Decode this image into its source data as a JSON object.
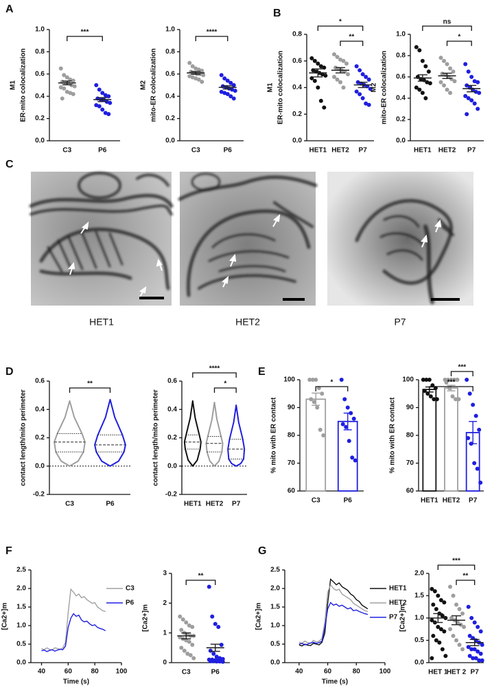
{
  "panels": [
    "A",
    "B",
    "C",
    "D",
    "E",
    "F",
    "G"
  ],
  "micrographs": [
    "HET1",
    "HET2",
    "P7"
  ],
  "chart_data": [
    {
      "type": "strip",
      "ylabel": [
        "M1",
        "ER-mito colocalization"
      ],
      "categories": [
        "C3",
        "P6"
      ],
      "groups": [
        {
          "color": "#9e9e9e",
          "values": [
            0.65,
            0.59,
            0.57,
            0.55,
            0.54,
            0.53,
            0.52,
            0.52,
            0.5,
            0.49,
            0.48,
            0.47,
            0.44,
            0.43,
            0.42,
            0.38
          ],
          "mean": 0.52,
          "sem": 0.017
        },
        {
          "color": "#1f1fe0",
          "values": [
            0.5,
            0.46,
            0.43,
            0.41,
            0.4,
            0.38,
            0.37,
            0.37,
            0.35,
            0.34,
            0.32,
            0.31,
            0.28,
            0.25,
            0.24
          ],
          "mean": 0.37,
          "sem": 0.018
        }
      ],
      "ylim": [
        0,
        1
      ],
      "yticks": [
        {
          "value": 0,
          "label": "0.0"
        },
        0.2,
        0.4,
        0.6,
        0.8,
        {
          "value": 1,
          "label": "1.0"
        }
      ],
      "comparisons": [
        {
          "pair": [
            "C3",
            "P6"
          ],
          "label": "***"
        }
      ]
    },
    {
      "type": "strip",
      "ylabel": [
        "M2",
        "mito-ER colocalization"
      ],
      "categories": [
        "C3",
        "P6"
      ],
      "groups": [
        {
          "color": "#9e9e9e",
          "values": [
            0.7,
            0.67,
            0.65,
            0.64,
            0.63,
            0.62,
            0.61,
            0.6,
            0.6,
            0.59,
            0.58,
            0.57,
            0.56,
            0.55,
            0.53
          ],
          "mean": 0.61,
          "sem": 0.013
        },
        {
          "color": "#1f1fe0",
          "values": [
            0.59,
            0.56,
            0.54,
            0.52,
            0.5,
            0.49,
            0.48,
            0.47,
            0.46,
            0.45,
            0.44,
            0.43,
            0.42,
            0.4,
            0.38
          ],
          "mean": 0.48,
          "sem": 0.015
        }
      ],
      "ylim": [
        0,
        1
      ],
      "yticks": [
        {
          "value": 0,
          "label": "0.0"
        },
        0.2,
        0.4,
        0.6,
        0.8,
        {
          "value": 1,
          "label": "1.0"
        }
      ],
      "comparisons": [
        {
          "pair": [
            "C3",
            "P6"
          ],
          "label": "****"
        }
      ]
    },
    {
      "type": "strip",
      "ylabel": [
        "M1",
        "ER-mito colocalization"
      ],
      "categories": [
        "HET1",
        "HET2",
        "P7"
      ],
      "groups": [
        {
          "color": "#111111",
          "values": [
            0.62,
            0.6,
            0.58,
            0.56,
            0.55,
            0.53,
            0.52,
            0.51,
            0.5,
            0.49,
            0.47,
            0.45,
            0.4,
            0.3,
            0.25
          ],
          "mean": 0.51,
          "sem": 0.03
        },
        {
          "color": "#9e9e9e",
          "values": [
            0.65,
            0.63,
            0.61,
            0.6,
            0.58,
            0.55,
            0.54,
            0.53,
            0.52,
            0.5,
            0.48,
            0.46,
            0.44,
            0.4
          ],
          "mean": 0.53,
          "sem": 0.02
        },
        {
          "color": "#1f1fe0",
          "values": [
            0.56,
            0.53,
            0.5,
            0.48,
            0.46,
            0.44,
            0.43,
            0.42,
            0.41,
            0.39,
            0.37,
            0.35,
            0.32,
            0.28,
            0.27
          ],
          "mean": 0.42,
          "sem": 0.02
        }
      ],
      "ylim": [
        0,
        0.8
      ],
      "yticks": [
        {
          "value": 0,
          "label": "0.0"
        },
        0.2,
        0.4,
        0.6,
        0.8
      ],
      "comparisons": [
        {
          "pair": [
            "HET2",
            "P7"
          ],
          "label": "**"
        },
        {
          "pair": [
            "HET1",
            "P7"
          ],
          "label": "*"
        }
      ]
    },
    {
      "type": "strip",
      "ylabel": [
        "M2",
        "mito-ER colocalization"
      ],
      "categories": [
        "HET1",
        "HET2",
        "P7"
      ],
      "groups": [
        {
          "color": "#111111",
          "values": [
            0.88,
            0.85,
            0.75,
            0.7,
            0.65,
            0.6,
            0.58,
            0.57,
            0.55,
            0.54,
            0.5,
            0.48,
            0.45,
            0.4
          ],
          "mean": 0.59,
          "sem": 0.03
        },
        {
          "color": "#9e9e9e",
          "values": [
            0.78,
            0.75,
            0.72,
            0.68,
            0.65,
            0.63,
            0.62,
            0.6,
            0.58,
            0.56,
            0.55,
            0.52,
            0.48,
            0.45
          ],
          "mean": 0.61,
          "sem": 0.025
        },
        {
          "color": "#1f1fe0",
          "values": [
            0.72,
            0.65,
            0.6,
            0.56,
            0.55,
            0.52,
            0.5,
            0.48,
            0.46,
            0.45,
            0.42,
            0.4,
            0.38,
            0.35,
            0.3,
            0.25
          ],
          "mean": 0.49,
          "sem": 0.03
        }
      ],
      "ylim": [
        0,
        1
      ],
      "yticks": [
        {
          "value": 0,
          "label": "0.0"
        },
        0.2,
        0.4,
        0.6,
        0.8,
        {
          "value": 1,
          "label": "1.0"
        }
      ],
      "comparisons": [
        {
          "pair": [
            "HET2",
            "P7"
          ],
          "label": "*"
        },
        {
          "pair": [
            "HET1",
            "P7"
          ],
          "label": "ns"
        }
      ]
    },
    {
      "type": "violin",
      "ylabel": "contact length/mito perimeter",
      "categories": [
        "C3",
        "P6"
      ],
      "hline": 0,
      "groups": [
        {
          "color": "#9e9e9e",
          "min": 0,
          "q1": 0.1,
          "median": 0.17,
          "q3": 0.23,
          "max": 0.46
        },
        {
          "color": "#1f1fe0",
          "min": 0,
          "q1": 0.1,
          "median": 0.15,
          "q3": 0.22,
          "max": 0.47
        }
      ],
      "ylim": [
        -0.2,
        0.6
      ],
      "yticks": [
        -0.2,
        {
          "value": 0,
          "label": "0.0"
        },
        0.2,
        0.4,
        0.6
      ],
      "comparisons": [
        {
          "pair": [
            "C3",
            "P6"
          ],
          "label": "**"
        }
      ]
    },
    {
      "type": "violin",
      "ylabel": "contact length/mito perimeter",
      "categories": [
        "HET1",
        "HET2",
        "P7"
      ],
      "hline": 0,
      "groups": [
        {
          "color": "#111111",
          "min": 0,
          "q1": 0.12,
          "median": 0.17,
          "q3": 0.22,
          "max": 0.46
        },
        {
          "color": "#9e9e9e",
          "min": 0,
          "q1": 0.1,
          "median": 0.16,
          "q3": 0.21,
          "max": 0.45
        },
        {
          "color": "#1f1fe0",
          "min": 0,
          "q1": 0.05,
          "median": 0.12,
          "q3": 0.19,
          "max": 0.43
        }
      ],
      "ylim": [
        -0.2,
        0.6
      ],
      "yticks": [
        -0.2,
        {
          "value": 0,
          "label": "0.0"
        },
        0.2,
        0.4,
        0.6
      ],
      "comparisons": [
        {
          "pair": [
            "HET2",
            "P7"
          ],
          "label": "*"
        },
        {
          "pair": [
            "HET1",
            "P7"
          ],
          "label": "****"
        }
      ]
    },
    {
      "type": "bar",
      "ylabel": "% mito with ER contact",
      "categories": [
        "C3",
        "P6"
      ],
      "groups": [
        {
          "color": "#9e9e9e",
          "values": [
            100,
            100,
            100,
            97,
            95,
            93,
            92,
            90,
            82,
            80
          ],
          "mean": 93,
          "sem": 2.2
        },
        {
          "color": "#1f1fe0",
          "values": [
            100,
            93,
            90,
            88,
            86,
            84,
            83,
            78,
            72,
            71
          ],
          "mean": 85,
          "sem": 3
        }
      ],
      "ylim": [
        60,
        100
      ],
      "yticks": [
        60,
        70,
        80,
        90,
        100
      ],
      "comparisons": [
        {
          "pair": [
            "C3",
            "P6"
          ],
          "label": "*"
        }
      ]
    },
    {
      "type": "bar",
      "ylabel": "% mito with ER contact",
      "categories": [
        "HET1",
        "HET2",
        "P7"
      ],
      "groups": [
        {
          "color": "#111111",
          "values": [
            100,
            100,
            100,
            98,
            97,
            96,
            95,
            94,
            93,
            93
          ],
          "mean": 96.5,
          "sem": 0.9
        },
        {
          "color": "#9e9e9e",
          "values": [
            100,
            100,
            100,
            100,
            100,
            99,
            97,
            94,
            93,
            93
          ],
          "mean": 97,
          "sem": 1
        },
        {
          "color": "#1f1fe0",
          "values": [
            100,
            95,
            91,
            87,
            82,
            79,
            77,
            70,
            68,
            63
          ],
          "mean": 81,
          "sem": 4
        }
      ],
      "ylim": [
        60,
        100
      ],
      "yticks": [
        60,
        70,
        80,
        90,
        100
      ],
      "comparisons": [
        {
          "pair": [
            "HET1",
            "P7"
          ],
          "label": "***"
        },
        {
          "pair": [
            "HET2",
            "P7"
          ],
          "label": "***"
        }
      ]
    },
    {
      "type": "line",
      "xlabel": "Time (s)",
      "ylabel": "[Ca2+]m",
      "x": [
        40,
        42,
        44,
        46,
        48,
        50,
        52,
        54,
        56,
        58,
        60,
        62,
        64,
        66,
        68,
        70,
        72,
        74,
        76,
        78,
        80,
        82,
        84,
        86,
        88
      ],
      "series": [
        {
          "name": "C3",
          "color": "#a0a0a0",
          "values": [
            0.38,
            0.35,
            0.4,
            0.36,
            0.34,
            0.4,
            0.38,
            0.36,
            0.4,
            0.55,
            1.35,
            1.98,
            1.9,
            1.8,
            1.85,
            1.75,
            1.78,
            1.7,
            1.65,
            1.6,
            1.62,
            1.5,
            1.45,
            1.4,
            1.38
          ]
        },
        {
          "name": "P6",
          "color": "#1f1fe0",
          "values": [
            0.32,
            0.34,
            0.3,
            0.33,
            0.35,
            0.31,
            0.34,
            0.36,
            0.35,
            0.45,
            0.95,
            1.2,
            1.32,
            1.25,
            1.28,
            1.15,
            1.1,
            1.12,
            1.05,
            1,
            1.02,
            0.95,
            0.92,
            0.9,
            0.86
          ]
        }
      ],
      "xlim": [
        32,
        100
      ],
      "xticks": [
        40,
        60,
        80,
        100
      ],
      "ylim": [
        0,
        2.5
      ],
      "yticks": [
        {
          "value": 0,
          "label": "0.0"
        },
        0.5,
        {
          "value": 1,
          "label": "1.0"
        },
        1.5,
        {
          "value": 2,
          "label": "2.0"
        },
        2.5
      ]
    },
    {
      "type": "strip",
      "ylabel": "[Ca2+]m",
      "categories": [
        "C3",
        "P6"
      ],
      "groups": [
        {
          "color": "#9e9e9e",
          "values": [
            1.55,
            1.45,
            1.35,
            1.25,
            1.2,
            1.1,
            1,
            0.95,
            0.9,
            0.9,
            0.85,
            0.8,
            0.75,
            0.7,
            0.6,
            0.5,
            0.4,
            0.3,
            0.25,
            0.15
          ],
          "mean": 0.9,
          "sem": 0.1
        },
        {
          "color": "#1f1fe0",
          "values": [
            2.55,
            1.55,
            1.3,
            1.2,
            0.6,
            0.4,
            0.3,
            0.2,
            0.15,
            0.12,
            0.1,
            0.1,
            0.08,
            0.08,
            0.06,
            0.05,
            0.05,
            0.04,
            0.04,
            0.03
          ],
          "mean": 0.5,
          "sem": 0.12
        }
      ],
      "ylim": [
        0,
        3
      ],
      "yticks": [
        0,
        1,
        2,
        3
      ],
      "comparisons": [
        {
          "pair": [
            "C3",
            "P6"
          ],
          "label": "**"
        }
      ]
    },
    {
      "type": "line",
      "xlabel": "Time (s)",
      "ylabel": "[Ca2+]m",
      "x": [
        40,
        42,
        44,
        46,
        48,
        50,
        52,
        54,
        56,
        58,
        60,
        62,
        64,
        66,
        68,
        70,
        72,
        74,
        76,
        78,
        80,
        82,
        84,
        86,
        88
      ],
      "series": [
        {
          "name": "HET1",
          "color": "#111111",
          "values": [
            0.48,
            0.45,
            0.5,
            0.47,
            0.46,
            0.52,
            0.5,
            0.48,
            0.55,
            0.8,
            1.6,
            2.25,
            2.18,
            2.1,
            2.15,
            2.05,
            2,
            1.95,
            1.85,
            1.8,
            1.7,
            1.65,
            1.55,
            1.5,
            1.45
          ]
        },
        {
          "name": "HET2",
          "color": "#a0a0a0",
          "values": [
            0.55,
            0.52,
            0.58,
            0.54,
            0.52,
            0.6,
            0.56,
            0.58,
            0.65,
            1.1,
            1.9,
            2.1,
            2,
            1.95,
            1.98,
            1.85,
            1.8,
            1.75,
            1.7,
            1.6,
            1.55,
            1.5,
            1.45,
            1.4,
            1.38
          ]
        },
        {
          "name": "P7",
          "color": "#1f1fe0",
          "values": [
            0.5,
            0.52,
            0.48,
            0.5,
            0.53,
            0.55,
            0.52,
            0.54,
            0.58,
            0.95,
            1.45,
            1.62,
            1.55,
            1.58,
            1.52,
            1.55,
            1.5,
            1.45,
            1.48,
            1.4,
            1.42,
            1.38,
            1.35,
            1.32,
            1.3
          ]
        }
      ],
      "xlim": [
        30,
        100
      ],
      "xticks": [
        40,
        60,
        80,
        100
      ],
      "ylim": [
        0,
        2.5
      ],
      "yticks": [
        {
          "value": 0,
          "label": "0.0"
        },
        0.5,
        {
          "value": 1,
          "label": "1.0"
        },
        1.5,
        {
          "value": 2,
          "label": "2.0"
        },
        2.5
      ]
    },
    {
      "type": "strip",
      "ylabel": "[Ca2+]m",
      "categories": [
        "HET 1",
        "HET 2",
        "P7"
      ],
      "groups": [
        {
          "color": "#111111",
          "values": [
            1.65,
            1.6,
            1.5,
            1.4,
            1.35,
            1.3,
            1.2,
            1.1,
            1.05,
            1,
            0.95,
            0.9,
            0.8,
            0.75,
            0.7,
            0.6,
            0.5,
            0.45,
            0.3,
            0.15,
            0.1
          ],
          "mean": 1,
          "sem": 0.1
        },
        {
          "color": "#9e9e9e",
          "values": [
            1.7,
            1.5,
            1.3,
            1.2,
            1.1,
            1,
            0.95,
            0.9,
            0.85,
            0.8,
            0.75,
            0.6,
            0.5,
            0.4,
            0.3
          ],
          "mean": 0.95,
          "sem": 0.1
        },
        {
          "color": "#1f1fe0",
          "values": [
            1.25,
            1,
            0.9,
            0.8,
            0.7,
            0.6,
            0.55,
            0.5,
            0.45,
            0.4,
            0.35,
            0.3,
            0.3,
            0.25,
            0.2,
            0.15,
            0.1,
            0.1,
            0.05,
            0.05
          ],
          "mean": 0.45,
          "sem": 0.07
        }
      ],
      "ylim": [
        0,
        2
      ],
      "yticks": [
        {
          "value": 0,
          "label": "0.0"
        },
        0.5,
        {
          "value": 1,
          "label": "1.0"
        },
        1.5,
        {
          "value": 2,
          "label": "2.0"
        }
      ],
      "comparisons": [
        {
          "pair": [
            "HET 2",
            "P7"
          ],
          "label": "**"
        },
        {
          "pair": [
            "HET 1",
            "P7"
          ],
          "label": "***"
        }
      ]
    }
  ]
}
